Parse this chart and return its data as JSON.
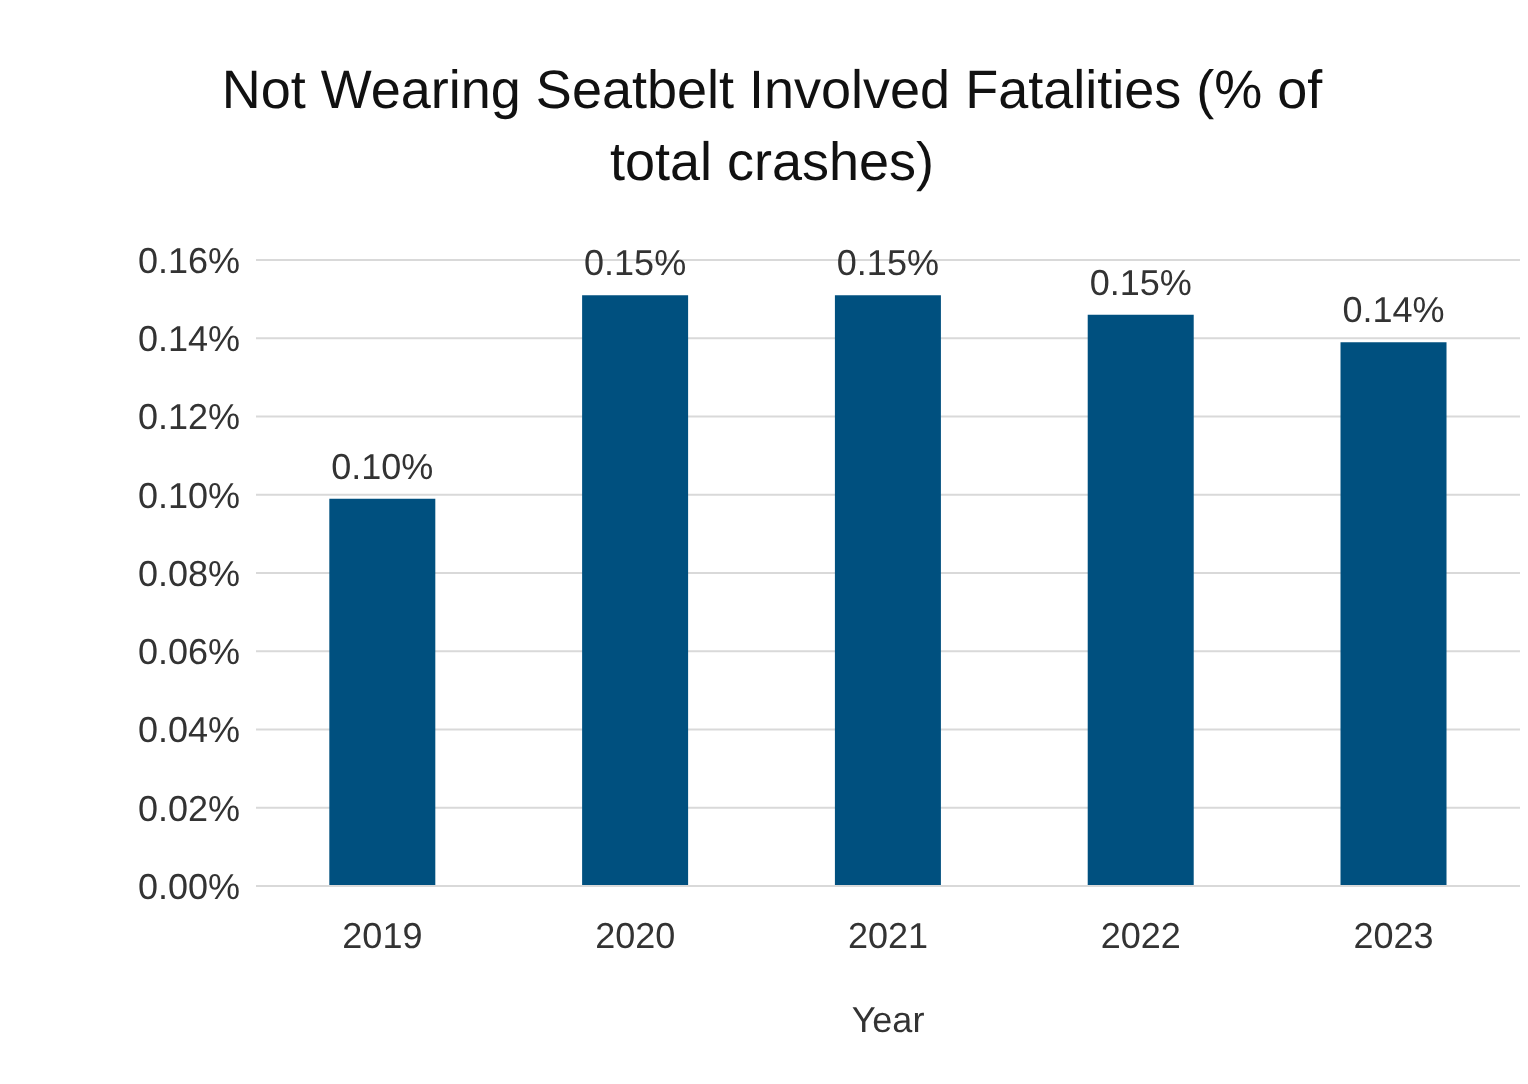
{
  "chart_data": {
    "type": "bar",
    "title": "Not Wearing Seatbelt Involved Fatalities (% of total crashes)",
    "xlabel": "Year",
    "categories": [
      "2019",
      "2020",
      "2021",
      "2022",
      "2023"
    ],
    "values": [
      0.099,
      0.151,
      0.151,
      0.146,
      0.139
    ],
    "value_labels": [
      "0.10%",
      "0.15%",
      "0.15%",
      "0.15%",
      "0.14%"
    ],
    "color": "#00507f",
    "ylim": [
      0,
      0.16
    ],
    "yticks": [
      {
        "value": 0,
        "label": "0.00%"
      },
      {
        "value": 0.02,
        "label": "0.02%"
      },
      {
        "value": 0.04,
        "label": "0.04%"
      },
      {
        "value": 0.06,
        "label": "0.06%"
      },
      {
        "value": 0.08,
        "label": "0.08%"
      },
      {
        "value": 0.1,
        "label": "0.10%"
      },
      {
        "value": 0.12,
        "label": "0.12%"
      },
      {
        "value": 0.14,
        "label": "0.14%"
      },
      {
        "value": 0.16,
        "label": "0.16%"
      }
    ],
    "grid": "y",
    "legend": false
  }
}
